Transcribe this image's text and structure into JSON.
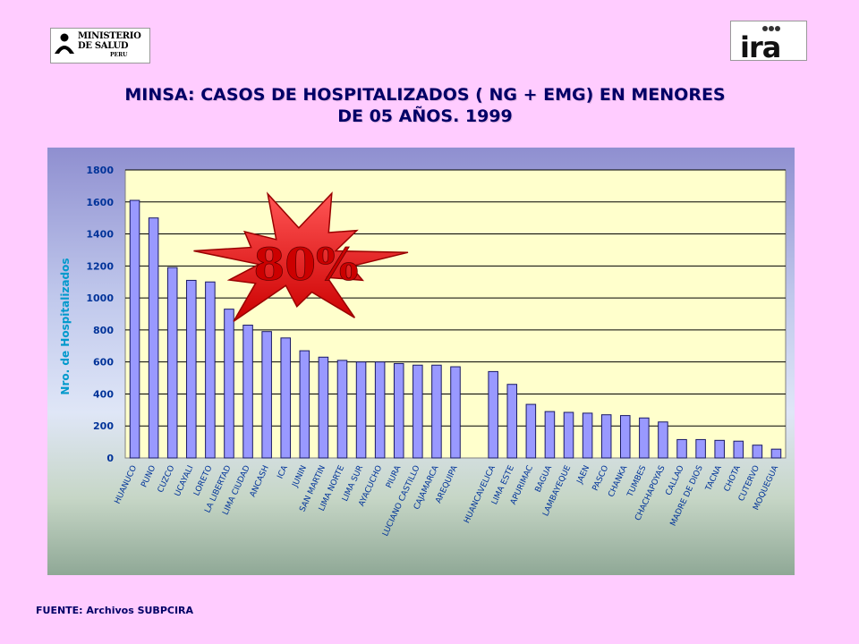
{
  "logos": {
    "minsa_lines": [
      "MINISTERIO",
      "DE SALUD"
    ],
    "minsa_sub": "PERU",
    "ira_text": "ira"
  },
  "header": {
    "title_line1": "MINSA: CASOS DE HOSPITALIZADOS ( NG + EMG) EN MENORES",
    "title_line2": "DE 05 AÑOS. 1999"
  },
  "footer": {
    "source": "FUENTE: Archivos SUBPCIRA"
  },
  "colors": {
    "bar_fill": "#9999ff",
    "bar_stroke": "#1a1a66",
    "plot_bg": "#ffffcc",
    "axis_text": "#003399",
    "ylabel_color": "#0099cc",
    "burst_fill": "#ff3333",
    "burst_text": "#cc0000"
  },
  "chart_data": {
    "type": "bar",
    "title": "",
    "xlabel": "",
    "ylabel": "Nro. de Hospitalizados",
    "ylim": [
      0,
      1800
    ],
    "yticks": [
      0,
      200,
      400,
      600,
      800,
      1000,
      1200,
      1400,
      1600,
      1800
    ],
    "grid": true,
    "legend": "none",
    "annotation": "80%",
    "categories": [
      "HUANUCO",
      "PUNO",
      "CUZCO",
      "UCAYALI",
      "LORETO",
      "LA LIBERTAD",
      "LIMA CIUDAD",
      "ANCASH",
      "ICA",
      "JUNIN",
      "SAN MARTIN",
      "LIMA NORTE",
      "LIMA SUR",
      "AYACUCHO",
      "PIURA",
      "LUCIANO CASTILLO",
      "CAJAMARCA",
      "AREQUIPA",
      "",
      "HUANCAVELICA",
      "LIMA ESTE",
      "APURIMAC",
      "BAGUA",
      "LAMBAYEQUE",
      "JAEN",
      "PASCO",
      "CHANKA",
      "TUMBES",
      "CHACHAPOYAS",
      "CALLAO",
      "MADRE DE DIOS",
      "TACNA",
      "CHOTA",
      "CUTERVO",
      "MOQUEGUA"
    ],
    "values": [
      1610,
      1500,
      1190,
      1110,
      1100,
      930,
      830,
      790,
      750,
      670,
      630,
      610,
      600,
      600,
      590,
      580,
      580,
      570,
      null,
      540,
      460,
      335,
      290,
      285,
      280,
      270,
      265,
      250,
      225,
      115,
      115,
      110,
      105,
      80,
      55
    ]
  }
}
